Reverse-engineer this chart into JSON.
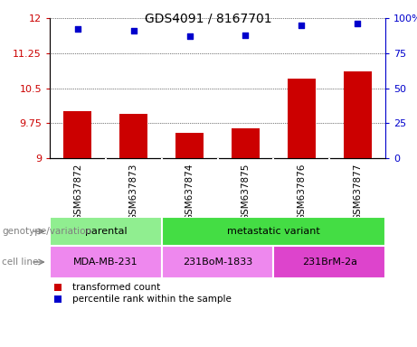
{
  "title": "GDS4091 / 8167701",
  "samples": [
    "GSM637872",
    "GSM637873",
    "GSM637874",
    "GSM637875",
    "GSM637876",
    "GSM637877"
  ],
  "transformed_count": [
    10.0,
    9.95,
    9.55,
    9.63,
    10.7,
    10.85
  ],
  "percentile_rank": [
    92,
    91,
    87,
    88,
    95,
    96
  ],
  "ylim_left": [
    9,
    12
  ],
  "ylim_right": [
    0,
    100
  ],
  "yticks_left": [
    9,
    9.75,
    10.5,
    11.25,
    12
  ],
  "ytick_labels_left": [
    "9",
    "9.75",
    "10.5",
    "11.25",
    "12"
  ],
  "yticks_right": [
    0,
    25,
    50,
    75,
    100
  ],
  "ytick_labels_right": [
    "0",
    "25",
    "50",
    "75",
    "100%"
  ],
  "bar_color": "#cc0000",
  "dot_color": "#0000cc",
  "bar_width": 0.5,
  "parental_color": "#90ee90",
  "metastatic_color": "#44dd44",
  "cell_color_1": "#ee88ee",
  "cell_color_2": "#dd44cc",
  "sample_area_color": "#c8c8c8",
  "legend_bar_label": "transformed count",
  "legend_dot_label": "percentile rank within the sample",
  "xlabel_genotype": "genotype/variation",
  "xlabel_cellline": "cell line"
}
